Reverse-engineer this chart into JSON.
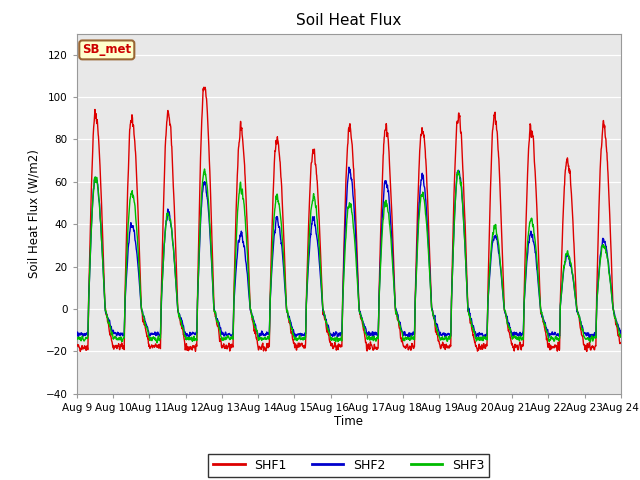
{
  "title": "Soil Heat Flux",
  "ylabel": "Soil Heat Flux (W/m2)",
  "xlabel": "Time",
  "ylim": [
    -40,
    130
  ],
  "yticks": [
    -40,
    -20,
    0,
    20,
    40,
    60,
    80,
    100,
    120
  ],
  "plot_bg_color": "#e8e8e8",
  "fig_bg_color": "#ffffff",
  "annotation_text": "SB_met",
  "annotation_facecolor": "#ffffcc",
  "annotation_edgecolor": "#996633",
  "annotation_textcolor": "#cc0000",
  "line_colors": {
    "SHF1": "#dd0000",
    "SHF2": "#0000cc",
    "SHF3": "#00bb00"
  },
  "xtick_labels": [
    "Aug 9",
    "Aug 10",
    "Aug 11",
    "Aug 12",
    "Aug 13",
    "Aug 14",
    "Aug 15",
    "Aug 16",
    "Aug 17",
    "Aug 18",
    "Aug 19",
    "Aug 20",
    "Aug 21",
    "Aug 22",
    "Aug 23",
    "Aug 24"
  ],
  "shf1_peaks": [
    92,
    90,
    92,
    106,
    85,
    80,
    75,
    85,
    85,
    85,
    91,
    91,
    86,
    70,
    87
  ],
  "shf2_peaks": [
    62,
    40,
    45,
    60,
    35,
    42,
    42,
    65,
    60,
    62,
    65,
    35,
    35,
    25,
    32
  ],
  "shf3_peaks": [
    62,
    55,
    45,
    65,
    58,
    53,
    53,
    50,
    50,
    55,
    65,
    38,
    42,
    26,
    30
  ],
  "n_days": 15,
  "pts_per_day": 144
}
